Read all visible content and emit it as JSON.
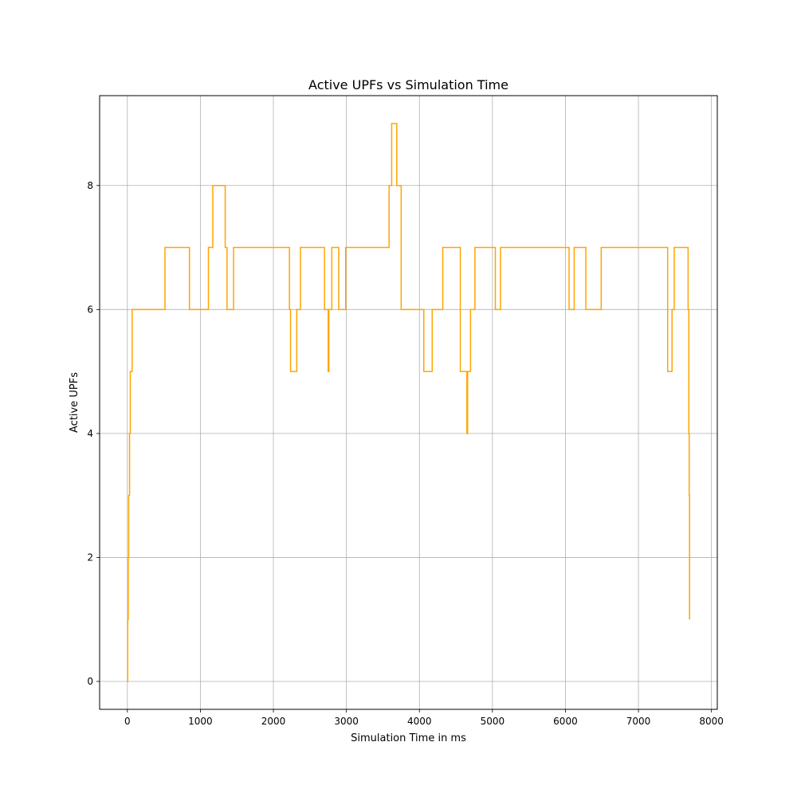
{
  "chart_data": {
    "type": "line",
    "title": "Active UPFs vs Simulation Time",
    "xlabel": "Simulation Time in ms",
    "ylabel": "Active UPFs",
    "xlim": [
      -380,
      8080
    ],
    "ylim": [
      -0.45,
      9.45
    ],
    "xticks": [
      0,
      1000,
      2000,
      3000,
      4000,
      5000,
      6000,
      7000,
      8000
    ],
    "yticks": [
      0,
      2,
      4,
      6,
      8
    ],
    "grid": true,
    "step": "post",
    "series": [
      {
        "color": "#ffa500",
        "points": [
          [
            0,
            0
          ],
          [
            5,
            1
          ],
          [
            12,
            2
          ],
          [
            18,
            3
          ],
          [
            30,
            4
          ],
          [
            40,
            5
          ],
          [
            65,
            6
          ],
          [
            515,
            7
          ],
          [
            850,
            6
          ],
          [
            1110,
            7
          ],
          [
            1170,
            8
          ],
          [
            1340,
            7
          ],
          [
            1365,
            6
          ],
          [
            1455,
            7
          ],
          [
            2220,
            6
          ],
          [
            2235,
            5
          ],
          [
            2320,
            6
          ],
          [
            2370,
            7
          ],
          [
            2700,
            6
          ],
          [
            2750,
            5
          ],
          [
            2760,
            6
          ],
          [
            2800,
            7
          ],
          [
            2895,
            6
          ],
          [
            2990,
            7
          ],
          [
            3585,
            8
          ],
          [
            3620,
            9
          ],
          [
            3690,
            8
          ],
          [
            3750,
            6
          ],
          [
            4060,
            5
          ],
          [
            4175,
            6
          ],
          [
            4320,
            7
          ],
          [
            4560,
            5
          ],
          [
            4650,
            4
          ],
          [
            4660,
            5
          ],
          [
            4700,
            6
          ],
          [
            4760,
            7
          ],
          [
            5040,
            6
          ],
          [
            5110,
            7
          ],
          [
            6050,
            6
          ],
          [
            6120,
            7
          ],
          [
            6280,
            6
          ],
          [
            6490,
            7
          ],
          [
            7400,
            5
          ],
          [
            7460,
            6
          ],
          [
            7490,
            7
          ],
          [
            7680,
            6
          ],
          [
            7690,
            4
          ],
          [
            7695,
            3
          ],
          [
            7700,
            1
          ]
        ]
      }
    ]
  }
}
